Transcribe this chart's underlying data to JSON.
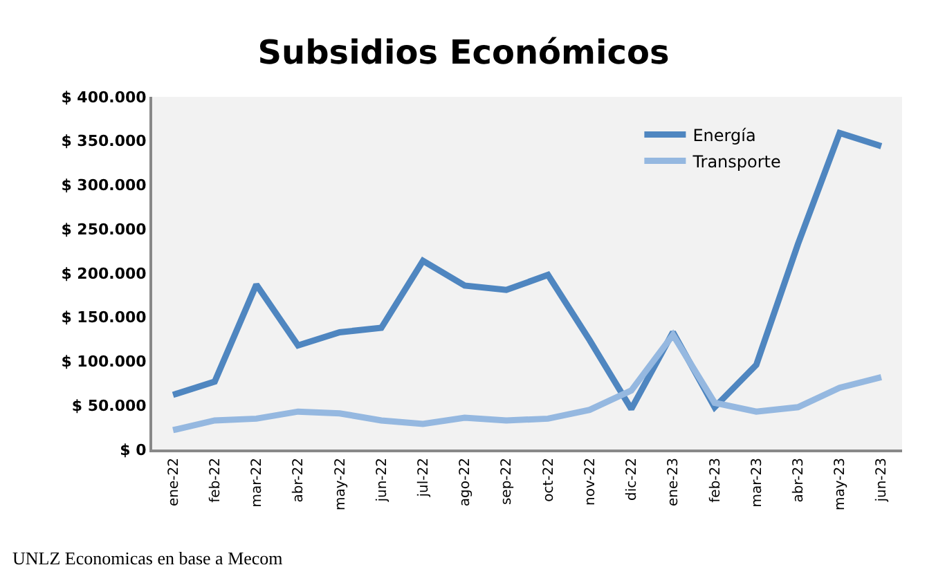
{
  "chart_data": {
    "type": "line",
    "title": "Subsidios Económicos",
    "categories": [
      "ene-22",
      "feb-22",
      "mar-22",
      "abr-22",
      "may-22",
      "jun-22",
      "jul-22",
      "ago-22",
      "sep-22",
      "oct-22",
      "nov-22",
      "dic-22",
      "ene-23",
      "feb-23",
      "mar-23",
      "abr-23",
      "may-23",
      "jun-23"
    ],
    "series": [
      {
        "name": "Energía",
        "color": "#4f86c0",
        "values": [
          62000,
          77000,
          187000,
          118000,
          133000,
          138000,
          214000,
          186000,
          181000,
          198000,
          124000,
          46000,
          133000,
          48000,
          96000,
          233000,
          359000,
          344000
        ]
      },
      {
        "name": "Transporte",
        "color": "#95b8e0",
        "values": [
          22000,
          33000,
          35000,
          43000,
          41000,
          33000,
          29000,
          36000,
          33000,
          35000,
          45000,
          67000,
          130000,
          53000,
          43000,
          48000,
          70000,
          82000
        ]
      }
    ],
    "ylim": [
      0,
      400000
    ],
    "yticks": [
      {
        "value": 0,
        "label": "$ 0"
      },
      {
        "value": 50000,
        "label": "$ 50.000"
      },
      {
        "value": 100000,
        "label": "$ 100.000"
      },
      {
        "value": 150000,
        "label": "$ 150.000"
      },
      {
        "value": 200000,
        "label": "$ 200.000"
      },
      {
        "value": 250000,
        "label": "$ 250.000"
      },
      {
        "value": 300000,
        "label": "$ 300.000"
      },
      {
        "value": 350000,
        "label": "$ 350.000"
      },
      {
        "value": 400000,
        "label": "$ 400.000"
      }
    ],
    "grid": false,
    "legend": "top right",
    "marker": "none",
    "line_style": "solid",
    "annotations": [
      "UNLZ Economicas en base a Mecom"
    ]
  }
}
